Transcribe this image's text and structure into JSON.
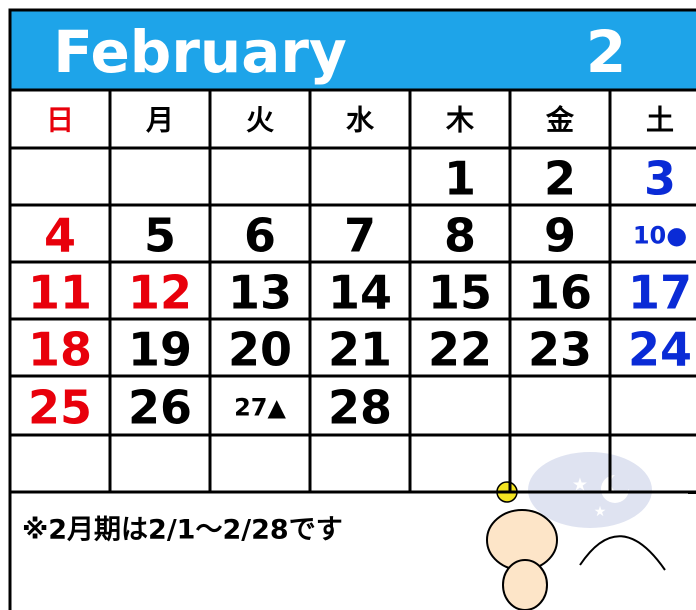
{
  "header": {
    "month": "February",
    "number": "2"
  },
  "weekdays": [
    {
      "text": "日",
      "color": "#e8000b"
    },
    {
      "text": "月"
    },
    {
      "text": "火"
    },
    {
      "text": "水"
    },
    {
      "text": "木"
    },
    {
      "text": "金"
    },
    {
      "text": "土"
    }
  ],
  "weeks": [
    [
      null,
      null,
      null,
      null,
      {
        "text": "1"
      },
      {
        "text": "2"
      },
      {
        "text": "3",
        "color": "#0a2bd6"
      }
    ],
    [
      {
        "text": "4",
        "color": "#e8000b"
      },
      {
        "text": "5"
      },
      {
        "text": "6"
      },
      {
        "text": "7"
      },
      {
        "text": "8"
      },
      {
        "text": "9"
      },
      {
        "text": "10●",
        "color": "#0a2bd6"
      }
    ],
    [
      {
        "text": "11",
        "color": "#e8000b"
      },
      {
        "text": "12",
        "color": "#e8000b"
      },
      {
        "text": "13"
      },
      {
        "text": "14"
      },
      {
        "text": "15"
      },
      {
        "text": "16"
      },
      {
        "text": "17",
        "color": "#0a2bd6"
      }
    ],
    [
      {
        "text": "18",
        "color": "#e8000b"
      },
      {
        "text": "19"
      },
      {
        "text": "20"
      },
      {
        "text": "21"
      },
      {
        "text": "22"
      },
      {
        "text": "23"
      },
      {
        "text": "24",
        "color": "#0a2bd6"
      }
    ],
    [
      {
        "text": "25",
        "color": "#e8000b"
      },
      {
        "text": "26"
      },
      {
        "text": "27▲"
      },
      {
        "text": "28"
      },
      null,
      null,
      null
    ],
    [
      null,
      null,
      null,
      null,
      null,
      null,
      null
    ]
  ],
  "note": "※2月期は2/1〜2/28です"
}
